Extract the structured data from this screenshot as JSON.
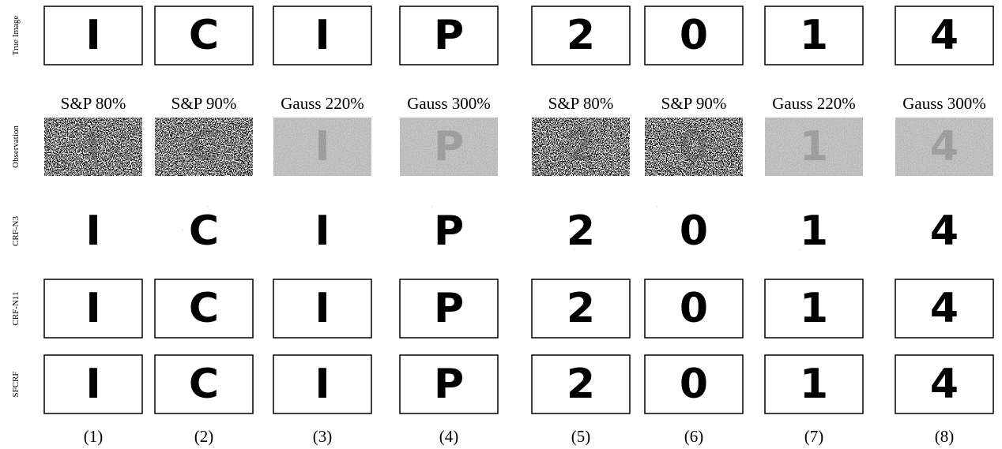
{
  "row_labels": [
    "True Image",
    "Observation",
    "CRF-N3",
    "CRF-N11",
    "SFCRF"
  ],
  "columns": [
    {
      "character": "I",
      "noise": "S&P 80%",
      "number": "(1)"
    },
    {
      "character": "C",
      "noise": "S&P 90%",
      "number": "(2)"
    },
    {
      "character": "I",
      "noise": "Gauss 220%",
      "number": "(3)"
    },
    {
      "character": "P",
      "noise": "Gauss 300%",
      "number": "(4)"
    },
    {
      "character": "2",
      "noise": "S&P 80%",
      "number": "(5)"
    },
    {
      "character": "0",
      "noise": "S&P 90%",
      "number": "(6)"
    },
    {
      "character": "1",
      "noise": "Gauss 220%",
      "number": "(7)"
    },
    {
      "character": "4",
      "noise": "Gauss 300%",
      "number": "(8)"
    }
  ]
}
